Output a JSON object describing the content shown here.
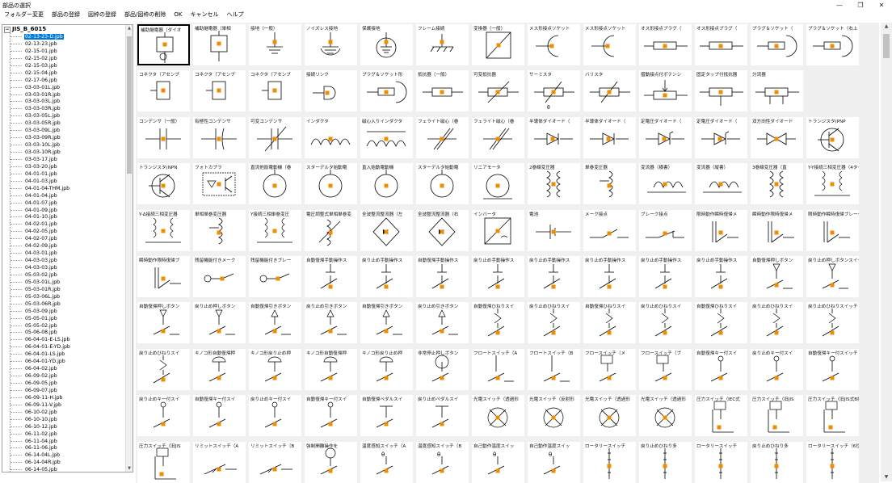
{
  "window": {
    "title": "部品の選択",
    "minimize_icon": "minimize-icon",
    "maximize_icon": "restore-icon",
    "close_icon": "close-icon"
  },
  "menu": [
    "フォルダー変更",
    "部品の登録",
    "図枠の登録",
    "部品/図枠の削除",
    "OK",
    "キャンセル",
    "ヘルプ"
  ],
  "tree": {
    "root": "JIS_B_6015",
    "selected_index": 0,
    "items": [
      "02-13-23-D.jpb",
      "02-13-23.jpb",
      "02-15-01.jpb",
      "02-15-02.jpb",
      "02-15-03.jpb",
      "02-15-04.jpb",
      "02-17-06.jpb",
      "03-03-01L.jpb",
      "03-03-01R.jpb",
      "03-03-03L.jpb",
      "03-03-03R.jpb",
      "03-03-05L.jpb",
      "03-03-05R.jpb",
      "03-03-09L.jpb",
      "03-03-09R.jpb",
      "03-03-10L.jpb",
      "03-03-10R.jpb",
      "03-03-17.jpb",
      "03-03-20.jpb",
      "04-01-01.jpb",
      "04-01-03.jpb",
      "04-01-04-THM.jpb",
      "04-01-04.jpb",
      "04-01-07.jpb",
      "04-01-09.jpb",
      "04-01-10.jpb",
      "04-02-01.jpb",
      "04-02-05.jpb",
      "04-02-07.jpb",
      "04-02-09.jpb",
      "04-03-01.jpb",
      "04-03-03.jpb",
      "04-03-03.jpb",
      "05-03-02.jpb",
      "05-03-01L.jpb",
      "05-03-01R.jpb",
      "05-03-06L.jpb",
      "05-03-06R.jpb",
      "05-03-09.jpb",
      "05-05-01.jpb",
      "05-05-02.jpb",
      "05-06-08.jpb",
      "06-04-01-E-LS.jpb",
      "06-04-01-E-YD.jpb",
      "06-04-01-LS.jpb",
      "06-04-01-YD.jpb",
      "06-04-02.jpb",
      "06-09-02.jpb",
      "06-09-05.jpb",
      "06-09-07.jpb",
      "06-09-11-H.jpb",
      "06-09-11-V.jpb",
      "06-10-02.jpb",
      "06-10-10.jpb",
      "06-10-12.jpb",
      "06-11-02.jpb",
      "06-11-04.jpb",
      "06-11-06.jpb",
      "06-14-04L.jpb",
      "06-14-04R.jpb",
      "06-14-05.jpb"
    ]
  },
  "accent_color": "#f08c00",
  "selection_color": "#0078d7",
  "parts": [
    {
      "label": "補助継電器（ダイオ",
      "icon": "relay-diode-icon"
    },
    {
      "label": "補助継電器（単相",
      "icon": "relay-coil-icon"
    },
    {
      "label": "接地（一般）",
      "icon": "ground-icon"
    },
    {
      "label": "ノイズレス接地",
      "icon": "noiseless-ground-icon"
    },
    {
      "label": "保護接地",
      "icon": "protective-ground-icon"
    },
    {
      "label": "フレーム接続",
      "icon": "frame-ground-icon"
    },
    {
      "label": "変換器（一般）",
      "icon": "converter-icon"
    },
    {
      "label": "メス形接点ソケット",
      "icon": "socket-icon"
    },
    {
      "label": "メス形接点ソケット",
      "icon": "socket-icon"
    },
    {
      "label": "オス形接点プラグ（",
      "icon": "plug-icon"
    },
    {
      "label": "オス形接点プラグ（",
      "icon": "plug-icon"
    },
    {
      "label": "プラグ＆ソケット（",
      "icon": "plug-socket-icon"
    },
    {
      "label": "プラグ＆ソケット（右上",
      "icon": "plug-socket-icon"
    },
    {
      "label": "コネクタ（アセンブ",
      "icon": "connector-icon"
    },
    {
      "label": "コネクタ（アセンブ",
      "icon": "connector-icon"
    },
    {
      "label": "コネクタ（アセンブ",
      "icon": "connector-icon"
    },
    {
      "label": "接続リンク",
      "icon": "link-icon"
    },
    {
      "label": "プラグ＆ソケット形",
      "icon": "plug-socket-icon"
    },
    {
      "label": "抵抗器（一般）",
      "icon": "resistor-icon"
    },
    {
      "label": "可変抵抗器",
      "icon": "variable-resistor-icon"
    },
    {
      "label": "サーミスタ",
      "icon": "thermistor-icon"
    },
    {
      "label": "バリスタ",
      "icon": "varistor-icon"
    },
    {
      "label": "摺動接点付ポテンシ",
      "icon": "potentiometer-icon"
    },
    {
      "label": "固定タップ付抵抗器",
      "icon": "tapped-resistor-icon"
    },
    {
      "label": "分流器",
      "icon": "shunt-icon"
    },
    {
      "label": "",
      "icon": "empty"
    },
    {
      "label": "コンデンサ（一般）",
      "icon": "capacitor-icon"
    },
    {
      "label": "有極性コンデンサ",
      "icon": "polarized-capacitor-icon"
    },
    {
      "label": "可変コンデンサ",
      "icon": "variable-capacitor-icon"
    },
    {
      "label": "インダクタ",
      "icon": "inductor-icon"
    },
    {
      "label": "磁心入りインダクタ",
      "icon": "cored-inductor-icon"
    },
    {
      "label": "フェライト磁心（巻",
      "icon": "ferrite-icon"
    },
    {
      "label": "フェライト磁心（巻",
      "icon": "ferrite-icon"
    },
    {
      "label": "半導体ダイオード（",
      "icon": "diode-icon"
    },
    {
      "label": "半導体ダイオード（",
      "icon": "diode-icon"
    },
    {
      "label": "定電圧ダイオード（",
      "icon": "zener-icon"
    },
    {
      "label": "定電圧ダイオード（",
      "icon": "zener-icon"
    },
    {
      "label": "双方向性ダイオード",
      "icon": "bidirectional-diode-icon"
    },
    {
      "label": "トランジスタ(PNP",
      "icon": "transistor-icon"
    },
    {
      "label": "トランジスタ(NPN",
      "icon": "transistor-icon"
    },
    {
      "label": "フォトカプラ",
      "icon": "photocoupler-icon"
    },
    {
      "label": "直流他励電動機（巻",
      "icon": "motor-icon"
    },
    {
      "label": "スターデルタ始動電",
      "icon": "motor-icon"
    },
    {
      "label": "直入始動電動機",
      "icon": "motor-icon"
    },
    {
      "label": "スターデルタ始動電",
      "icon": "motor-icon"
    },
    {
      "label": "リニアモータ",
      "icon": "linear-motor-icon"
    },
    {
      "label": "2巻線変圧器",
      "icon": "transformer-icon"
    },
    {
      "label": "単巻変圧器",
      "icon": "autotransformer-icon"
    },
    {
      "label": "変流器（横書）",
      "icon": "current-transformer-icon"
    },
    {
      "label": "変流器（縦書）",
      "icon": "current-transformer-icon"
    },
    {
      "label": "3巻線変圧器（直",
      "icon": "transformer-icon"
    },
    {
      "label": "Y-Y接続三相変圧器（4タップ",
      "icon": "three-phase-transformer-icon"
    },
    {
      "label": "Y-Δ接続三相変圧器",
      "icon": "three-phase-transformer-icon"
    },
    {
      "label": "単相単巻変圧器",
      "icon": "autotransformer-icon"
    },
    {
      "label": "Y接続三相単巻変圧",
      "icon": "three-phase-transformer-icon"
    },
    {
      "label": "電圧調整式単相単巻変",
      "icon": "variac-icon"
    },
    {
      "label": "全波整流整流器（左",
      "icon": "bridge-rectifier-icon"
    },
    {
      "label": "全波整流整流器（右",
      "icon": "bridge-rectifier-icon"
    },
    {
      "label": "インバータ",
      "icon": "inverter-icon"
    },
    {
      "label": "電池",
      "icon": "battery-icon"
    },
    {
      "label": "メーク接点",
      "icon": "make-contact-icon"
    },
    {
      "label": "ブレーク接点",
      "icon": "break-contact-icon"
    },
    {
      "label": "限時動作瞬時復帰メ",
      "icon": "timer-contact-icon"
    },
    {
      "label": "瞬時動作限時復帰メ",
      "icon": "timer-contact-icon"
    },
    {
      "label": "限時動作瞬時復帰ブレーク",
      "icon": "timer-contact-icon"
    },
    {
      "label": "瞬時動作限時復帰ブ",
      "icon": "timer-contact-icon"
    },
    {
      "label": "残留機能付きメーク",
      "icon": "residual-contact-icon"
    },
    {
      "label": "残留機能付きブレー",
      "icon": "residual-contact-icon"
    },
    {
      "label": "自動復帰手動操作ス",
      "icon": "switch-icon"
    },
    {
      "label": "戻り止め手動操作ス",
      "icon": "switch-icon"
    },
    {
      "label": "自動復帰手動操作ス",
      "icon": "switch-icon"
    },
    {
      "label": "戻り止め手動操作ス",
      "icon": "switch-icon"
    },
    {
      "label": "戻り止め手動操作ス",
      "icon": "switch-icon"
    },
    {
      "label": "戻り止め手動操作ス",
      "icon": "switch-icon"
    },
    {
      "label": "戻り止め手動操作ス",
      "icon": "switch-icon"
    },
    {
      "label": "戻り止め手動操作ス",
      "icon": "switch-icon"
    },
    {
      "label": "自動復帰押しボタン",
      "icon": "pushbutton-icon"
    },
    {
      "label": "戻り止め押しボタンスイッチ",
      "icon": "pushbutton-icon"
    },
    {
      "label": "自動復帰押しボタン",
      "icon": "pushbutton-icon"
    },
    {
      "label": "戻り止め押しボタン",
      "icon": "pushbutton-icon"
    },
    {
      "label": "自動復帰引きボタン",
      "icon": "pull-switch-icon"
    },
    {
      "label": "戻り止め引きボタン",
      "icon": "pull-switch-icon"
    },
    {
      "label": "自動復帰引きボタン",
      "icon": "pull-switch-icon"
    },
    {
      "label": "戻り止め引きボタン",
      "icon": "pull-switch-icon"
    },
    {
      "label": "自動復帰ひねりスイ",
      "icon": "twist-switch-icon"
    },
    {
      "label": "戻り止めひねりスイ",
      "icon": "twist-switch-icon"
    },
    {
      "label": "自動復帰ひねりスイ",
      "icon": "twist-switch-icon"
    },
    {
      "label": "戻り止めひねりスイ",
      "icon": "twist-switch-icon"
    },
    {
      "label": "自動復帰ひねりスイ",
      "icon": "twist-switch-icon"
    },
    {
      "label": "戻り止めひねりスイ",
      "icon": "twist-switch-icon"
    },
    {
      "label": "戻り止めひねりスイッチ（2",
      "icon": "twist-switch-icon"
    },
    {
      "label": "戻り止めひねりスイ",
      "icon": "twist-switch-icon"
    },
    {
      "label": "キノコ形自動復帰押",
      "icon": "mushroom-switch-icon"
    },
    {
      "label": "キノコ形戻り止め押",
      "icon": "mushroom-switch-icon"
    },
    {
      "label": "キノコ形自動復帰押",
      "icon": "mushroom-switch-icon"
    },
    {
      "label": "キノコ形戻り止め押",
      "icon": "mushroom-switch-icon"
    },
    {
      "label": "非常停止押しボタン",
      "icon": "emergency-stop-icon"
    },
    {
      "label": "フロートスイッチ（A",
      "icon": "float-switch-icon"
    },
    {
      "label": "フロートスイッチ（B",
      "icon": "float-switch-icon"
    },
    {
      "label": "フロースイッチ（メ",
      "icon": "flow-switch-icon"
    },
    {
      "label": "フロースイッチ（ブ",
      "icon": "flow-switch-icon"
    },
    {
      "label": "自動復帰キー付スイ",
      "icon": "key-switch-icon"
    },
    {
      "label": "戻り止めキー付スイ",
      "icon": "key-switch-icon"
    },
    {
      "label": "自動復帰キー付スイッチ（3",
      "icon": "key-switch-icon"
    },
    {
      "label": "戻り止めキー付スイ",
      "icon": "key-switch-icon"
    },
    {
      "label": "自動復帰キー付スイ",
      "icon": "key-switch-icon"
    },
    {
      "label": "戻り止めキー付スイ",
      "icon": "key-switch-icon"
    },
    {
      "label": "自動復帰キー付スイ",
      "icon": "key-switch-icon"
    },
    {
      "label": "自動復帰ペダルスイ",
      "icon": "pedal-switch-icon"
    },
    {
      "label": "戻り止めペダルスイ",
      "icon": "pedal-switch-icon"
    },
    {
      "label": "光電スイッチ（透過形",
      "icon": "photoelectric-switch-icon"
    },
    {
      "label": "光電スイッチ（反射形",
      "icon": "photoelectric-switch-icon"
    },
    {
      "label": "光電スイッチ（透過形",
      "icon": "photoelectric-switch-icon"
    },
    {
      "label": "光電スイッチ（透過形",
      "icon": "photoelectric-switch-icon"
    },
    {
      "label": "圧力スイッチ（IEC式",
      "icon": "pressure-switch-icon"
    },
    {
      "label": "圧力スイッチ（旧JIS",
      "icon": "pressure-switch-icon"
    },
    {
      "label": "圧力スイッチ（旧JIS式B接",
      "icon": "pressure-switch-icon"
    },
    {
      "label": "圧力スイッチ（旧JIS",
      "icon": "pressure-switch-icon"
    },
    {
      "label": "リミットスイッチ（A",
      "icon": "limit-switch-icon"
    },
    {
      "label": "リミットスイッチ（B",
      "icon": "limit-switch-icon"
    },
    {
      "label": "強制開離操作を",
      "icon": "forced-break-icon"
    },
    {
      "label": "温度感知スイッチ（A",
      "icon": "thermal-switch-icon"
    },
    {
      "label": "温度感知スイッチ（B",
      "icon": "thermal-switch-icon"
    },
    {
      "label": "自己動作温度スイッ",
      "icon": "thermal-switch-icon"
    },
    {
      "label": "自己動作温度スイッ",
      "icon": "thermal-switch-icon"
    },
    {
      "label": "ロータリースイッチ",
      "icon": "rotary-switch-icon"
    },
    {
      "label": "戻り止めひねり多",
      "icon": "rotary-switch-icon"
    },
    {
      "label": "ロータリースイッチ",
      "icon": "rotary-switch-icon"
    },
    {
      "label": "戻り止めひねり多",
      "icon": "rotary-switch-icon"
    },
    {
      "label": "ロータリースイッチ（6位置",
      "icon": "rotary-switch-icon"
    }
  ]
}
